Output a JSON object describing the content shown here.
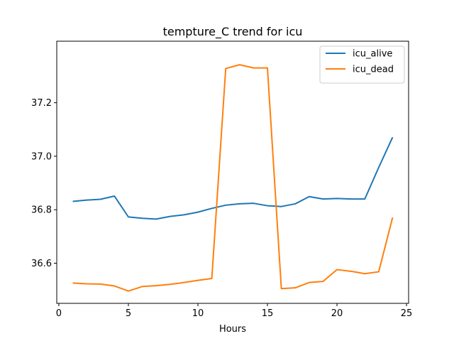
{
  "chart_data": {
    "type": "line",
    "title": "tempture_C trend for icu",
    "xlabel": "Hours",
    "ylabel": "",
    "xlim": [
      -0.15,
      25.15
    ],
    "ylim": [
      36.45,
      37.43
    ],
    "xticks": [
      0,
      5,
      10,
      15,
      20,
      25
    ],
    "yticks": [
      36.6,
      36.8,
      37.0,
      37.2
    ],
    "xtick_labels": [
      "0",
      "5",
      "10",
      "15",
      "20",
      "25"
    ],
    "ytick_labels": [
      "36.6",
      "36.8",
      "37.0",
      "37.2"
    ],
    "grid": false,
    "legend_position": "top-right",
    "x": [
      1,
      2,
      3,
      4,
      5,
      6,
      7,
      8,
      9,
      10,
      11,
      12,
      13,
      14,
      15,
      16,
      17,
      18,
      19,
      20,
      21,
      22,
      23,
      24
    ],
    "series": [
      {
        "name": "icu_alive",
        "color": "#1f77b4",
        "values": [
          36.831,
          36.836,
          36.839,
          36.851,
          36.773,
          36.768,
          36.765,
          36.775,
          36.781,
          36.791,
          36.805,
          36.817,
          36.822,
          36.824,
          36.815,
          36.812,
          36.822,
          36.849,
          36.84,
          36.842,
          36.84,
          36.84,
          36.958,
          37.071
        ]
      },
      {
        "name": "icu_dead",
        "color": "#ff7f0e",
        "values": [
          36.526,
          36.523,
          36.522,
          36.515,
          36.496,
          36.513,
          36.516,
          36.521,
          36.528,
          36.536,
          36.543,
          37.328,
          37.342,
          37.33,
          37.33,
          36.505,
          36.508,
          36.528,
          36.532,
          36.576,
          36.57,
          36.561,
          36.568,
          36.771
        ]
      }
    ]
  }
}
